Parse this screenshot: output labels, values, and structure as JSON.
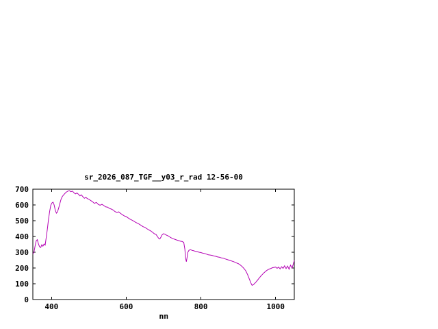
{
  "window": {
    "background": "#ffffff"
  },
  "chart_data": {
    "type": "line",
    "title": "sr_2026_087_TGF__y03_r_rad 12-56-00",
    "xlabel": "nm",
    "ylabel": "",
    "xlim": [
      350,
      1050
    ],
    "ylim": [
      0,
      700
    ],
    "x_ticks": [
      400,
      600,
      800,
      1000
    ],
    "y_ticks": [
      0,
      100,
      200,
      300,
      400,
      500,
      600,
      700
    ],
    "grid": false,
    "legend": "none",
    "line_color": "#b400b4",
    "axis_color": "#000000",
    "series": [
      {
        "name": "sr_2026_087_TGF__y03_r_rad",
        "points": [
          [
            350,
            288
          ],
          [
            353,
            300
          ],
          [
            356,
            340
          ],
          [
            359,
            372
          ],
          [
            362,
            380
          ],
          [
            365,
            352
          ],
          [
            368,
            335
          ],
          [
            371,
            330
          ],
          [
            374,
            348
          ],
          [
            377,
            338
          ],
          [
            380,
            352
          ],
          [
            383,
            345
          ],
          [
            386,
            395
          ],
          [
            389,
            450
          ],
          [
            392,
            510
          ],
          [
            395,
            560
          ],
          [
            398,
            598
          ],
          [
            401,
            612
          ],
          [
            404,
            618
          ],
          [
            407,
            600
          ],
          [
            410,
            568
          ],
          [
            413,
            548
          ],
          [
            416,
            556
          ],
          [
            419,
            580
          ],
          [
            422,
            606
          ],
          [
            425,
            632
          ],
          [
            428,
            650
          ],
          [
            431,
            660
          ],
          [
            434,
            668
          ],
          [
            437,
            676
          ],
          [
            440,
            682
          ],
          [
            444,
            688
          ],
          [
            448,
            690
          ],
          [
            452,
            684
          ],
          [
            456,
            688
          ],
          [
            460,
            678
          ],
          [
            464,
            670
          ],
          [
            468,
            676
          ],
          [
            472,
            668
          ],
          [
            476,
            658
          ],
          [
            480,
            664
          ],
          [
            484,
            652
          ],
          [
            488,
            642
          ],
          [
            492,
            648
          ],
          [
            496,
            640
          ],
          [
            500,
            636
          ],
          [
            505,
            628
          ],
          [
            510,
            620
          ],
          [
            515,
            610
          ],
          [
            520,
            616
          ],
          [
            525,
            604
          ],
          [
            530,
            598
          ],
          [
            535,
            604
          ],
          [
            540,
            596
          ],
          [
            545,
            588
          ],
          [
            550,
            586
          ],
          [
            555,
            578
          ],
          [
            560,
            574
          ],
          [
            565,
            568
          ],
          [
            570,
            558
          ],
          [
            575,
            552
          ],
          [
            580,
            556
          ],
          [
            585,
            546
          ],
          [
            590,
            538
          ],
          [
            595,
            530
          ],
          [
            600,
            526
          ],
          [
            605,
            518
          ],
          [
            610,
            510
          ],
          [
            615,
            504
          ],
          [
            620,
            498
          ],
          [
            625,
            490
          ],
          [
            630,
            484
          ],
          [
            635,
            478
          ],
          [
            640,
            470
          ],
          [
            645,
            462
          ],
          [
            650,
            458
          ],
          [
            655,
            450
          ],
          [
            660,
            442
          ],
          [
            665,
            436
          ],
          [
            670,
            428
          ],
          [
            675,
            418
          ],
          [
            680,
            412
          ],
          [
            684,
            398
          ],
          [
            687,
            388
          ],
          [
            690,
            384
          ],
          [
            693,
            396
          ],
          [
            696,
            410
          ],
          [
            700,
            418
          ],
          [
            704,
            414
          ],
          [
            708,
            408
          ],
          [
            712,
            404
          ],
          [
            716,
            398
          ],
          [
            720,
            392
          ],
          [
            725,
            386
          ],
          [
            730,
            382
          ],
          [
            735,
            378
          ],
          [
            740,
            374
          ],
          [
            745,
            370
          ],
          [
            750,
            368
          ],
          [
            754,
            362
          ],
          [
            757,
            320
          ],
          [
            759,
            262
          ],
          [
            761,
            240
          ],
          [
            763,
            268
          ],
          [
            765,
            300
          ],
          [
            768,
            312
          ],
          [
            772,
            316
          ],
          [
            776,
            312
          ],
          [
            780,
            310
          ],
          [
            785,
            306
          ],
          [
            790,
            304
          ],
          [
            795,
            300
          ],
          [
            800,
            298
          ],
          [
            805,
            294
          ],
          [
            810,
            292
          ],
          [
            815,
            288
          ],
          [
            820,
            284
          ],
          [
            825,
            282
          ],
          [
            830,
            280
          ],
          [
            835,
            276
          ],
          [
            840,
            274
          ],
          [
            845,
            270
          ],
          [
            850,
            268
          ],
          [
            855,
            264
          ],
          [
            860,
            262
          ],
          [
            865,
            258
          ],
          [
            870,
            254
          ],
          [
            875,
            250
          ],
          [
            880,
            246
          ],
          [
            885,
            242
          ],
          [
            890,
            238
          ],
          [
            895,
            232
          ],
          [
            900,
            228
          ],
          [
            905,
            220
          ],
          [
            910,
            210
          ],
          [
            915,
            198
          ],
          [
            920,
            182
          ],
          [
            925,
            158
          ],
          [
            930,
            128
          ],
          [
            934,
            104
          ],
          [
            937,
            90
          ],
          [
            940,
            94
          ],
          [
            944,
            102
          ],
          [
            948,
            112
          ],
          [
            952,
            124
          ],
          [
            956,
            136
          ],
          [
            960,
            148
          ],
          [
            964,
            158
          ],
          [
            968,
            168
          ],
          [
            972,
            176
          ],
          [
            976,
            184
          ],
          [
            980,
            190
          ],
          [
            984,
            194
          ],
          [
            988,
            198
          ],
          [
            992,
            202
          ],
          [
            996,
            204
          ],
          [
            1000,
            206
          ],
          [
            1004,
            198
          ],
          [
            1008,
            206
          ],
          [
            1012,
            194
          ],
          [
            1016,
            208
          ],
          [
            1020,
            198
          ],
          [
            1024,
            214
          ],
          [
            1028,
            196
          ],
          [
            1032,
            212
          ],
          [
            1036,
            192
          ],
          [
            1040,
            218
          ],
          [
            1044,
            200
          ],
          [
            1048,
            230
          ],
          [
            1050,
            248
          ]
        ]
      }
    ]
  }
}
